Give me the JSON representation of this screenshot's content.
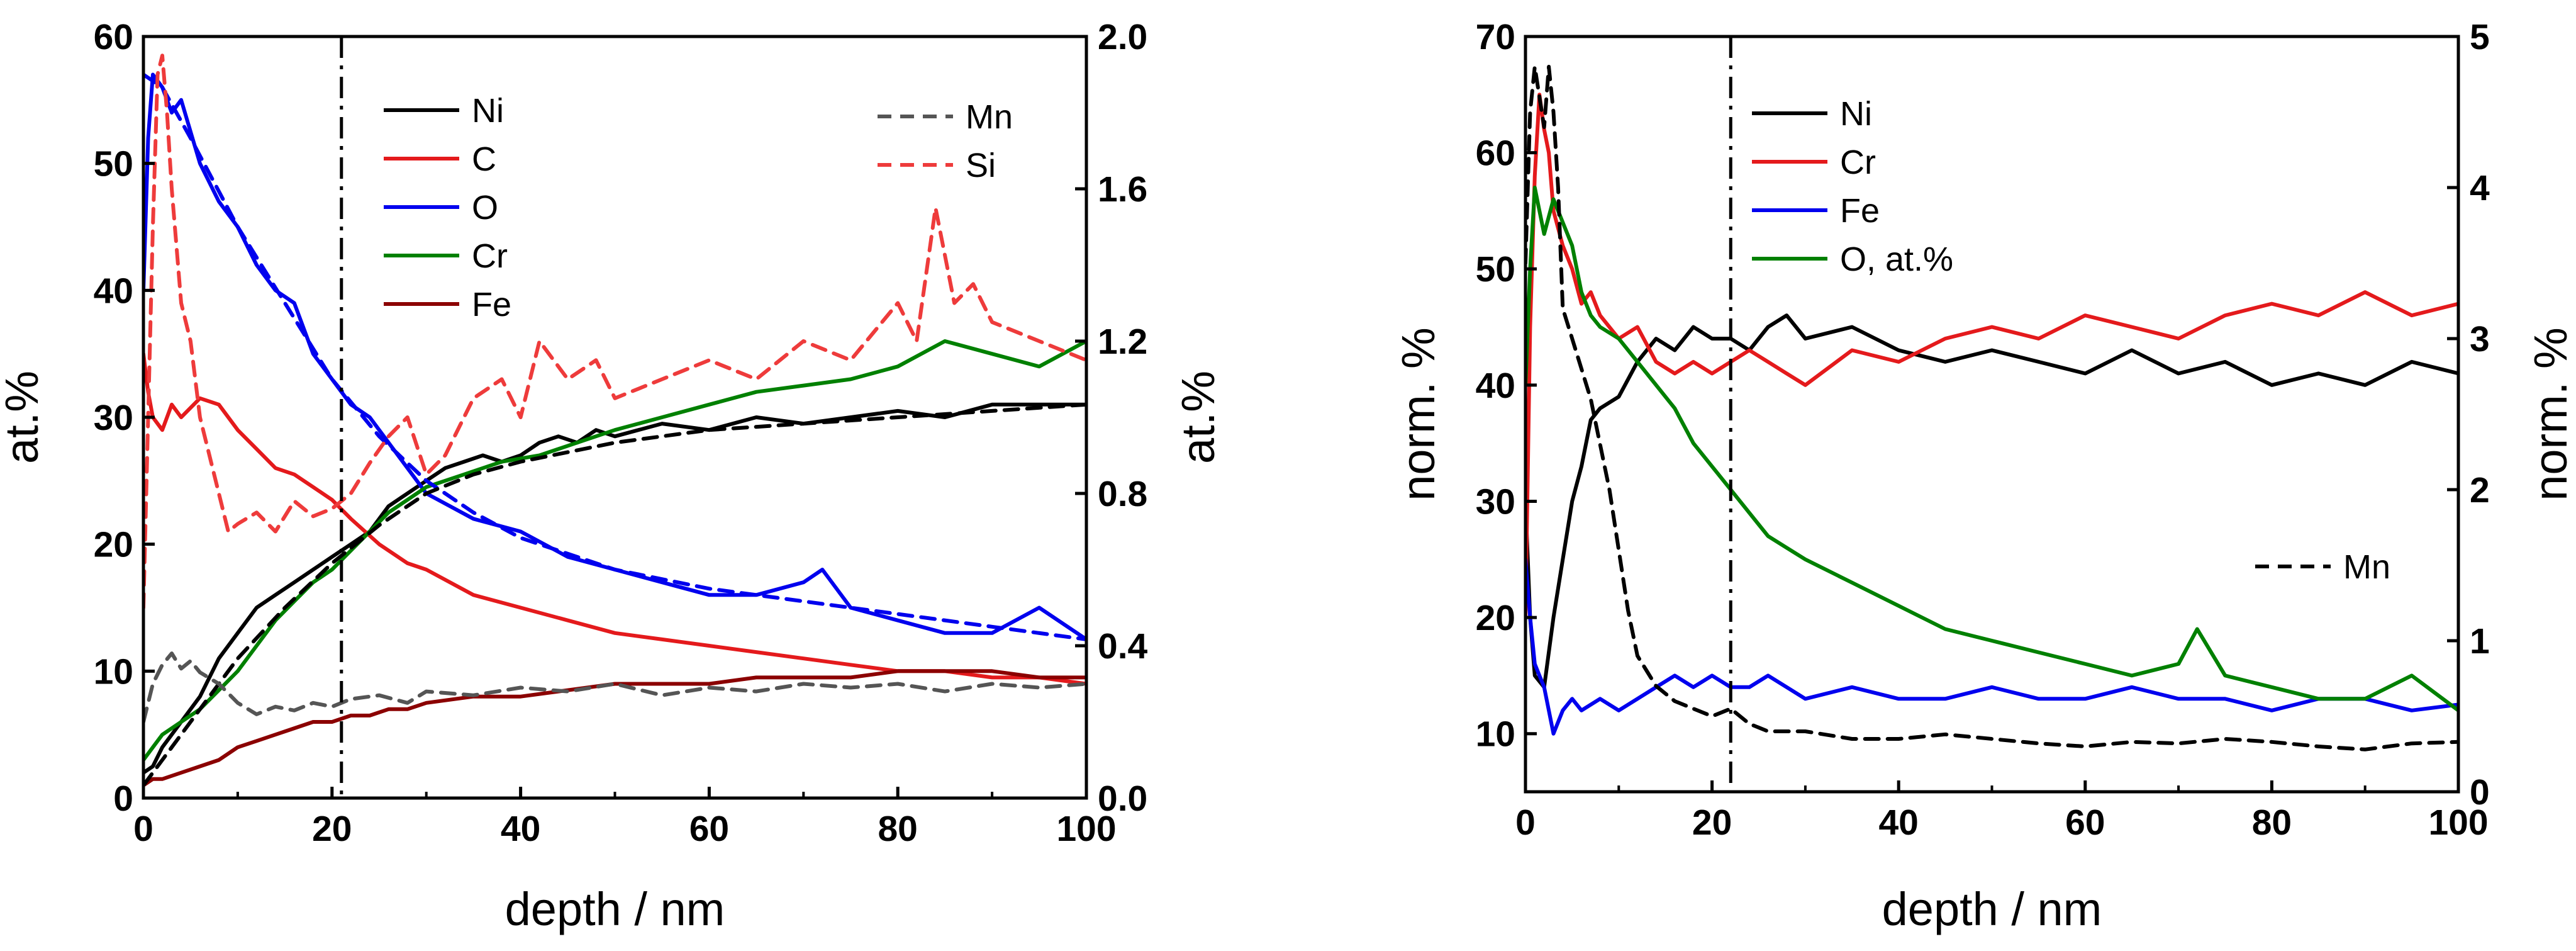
{
  "chart_data": [
    {
      "type": "line",
      "xlabel": "depth / nm",
      "ylabel": "at.%",
      "y2label": "at.%",
      "xlim": [
        0,
        100
      ],
      "ylim": [
        0,
        60
      ],
      "y2lim": [
        0,
        2.0
      ],
      "x_ticks": [
        "0",
        "20",
        "40",
        "60",
        "80",
        "100"
      ],
      "y_ticks": [
        "0",
        "10",
        "20",
        "30",
        "40",
        "50",
        "60"
      ],
      "y2_ticks": [
        "0.0",
        "0.4",
        "0.8",
        "1.2",
        "1.6",
        "2.0"
      ],
      "vline_x": 21,
      "series": [
        {
          "name": "Ni",
          "axis": "left",
          "color": "#000000",
          "dash": "solid",
          "x": [
            0,
            1,
            2,
            4,
            6,
            8,
            10,
            12,
            14,
            16,
            18,
            20,
            22,
            24,
            26,
            28,
            30,
            32,
            34,
            36,
            38,
            40,
            42,
            44,
            46,
            48,
            50,
            55,
            60,
            65,
            70,
            75,
            80,
            85,
            90,
            95,
            100
          ],
          "y": [
            2,
            2.5,
            4,
            6,
            8,
            11,
            13,
            15,
            16,
            17,
            18,
            19,
            20,
            21,
            23,
            24,
            25,
            26,
            26.5,
            27,
            26.5,
            27,
            28,
            28.5,
            28,
            29,
            28.5,
            29.5,
            29,
            30,
            29.5,
            30,
            30.5,
            30,
            31,
            31,
            31
          ]
        },
        {
          "name": "C",
          "axis": "left",
          "color": "#e41a1c",
          "dash": "solid",
          "x": [
            0,
            0.5,
            1,
            2,
            3,
            4,
            6,
            8,
            10,
            12,
            14,
            16,
            18,
            20,
            22,
            25,
            28,
            30,
            35,
            40,
            45,
            50,
            55,
            60,
            65,
            70,
            75,
            80,
            85,
            90,
            95,
            100
          ],
          "y": [
            35,
            32,
            30,
            29,
            31,
            30,
            31.5,
            31,
            29,
            27.5,
            26,
            25.5,
            24.5,
            23.5,
            22,
            20,
            18.5,
            18,
            16,
            15,
            14,
            13,
            12.5,
            12,
            11.5,
            11,
            10.5,
            10,
            10,
            9.5,
            9.5,
            9
          ]
        },
        {
          "name": "O",
          "axis": "left",
          "color": "#0000ee",
          "dash": "solid",
          "x": [
            0,
            0.5,
            1,
            2,
            3,
            4,
            6,
            8,
            10,
            12,
            14,
            16,
            18,
            20,
            22,
            24,
            26,
            28,
            30,
            35,
            40,
            45,
            50,
            55,
            60,
            65,
            70,
            72,
            75,
            80,
            85,
            90,
            95,
            100
          ],
          "y": [
            40,
            52,
            57,
            56,
            54,
            55,
            50,
            47,
            45,
            42,
            40,
            39,
            35,
            33,
            31,
            30,
            28,
            26,
            24,
            22,
            21,
            19,
            18,
            17,
            16,
            16,
            17,
            18,
            15,
            14,
            13,
            13,
            15,
            12.5
          ]
        },
        {
          "name": "Cr",
          "axis": "left",
          "color": "#008000",
          "dash": "solid",
          "x": [
            0,
            1,
            2,
            4,
            6,
            8,
            10,
            12,
            14,
            16,
            18,
            20,
            22,
            24,
            26,
            28,
            30,
            34,
            38,
            42,
            46,
            50,
            55,
            60,
            65,
            70,
            75,
            80,
            85,
            90,
            95,
            100
          ],
          "y": [
            3,
            4,
            5,
            6,
            7,
            8.5,
            10,
            12,
            14,
            15.5,
            17,
            18,
            19.5,
            21,
            22.5,
            23.5,
            24.5,
            25.5,
            26.5,
            27,
            28,
            29,
            30,
            31,
            32,
            32.5,
            33,
            34,
            36,
            35,
            34,
            36
          ]
        },
        {
          "name": "Fe",
          "axis": "left",
          "color": "#8b0000",
          "dash": "solid",
          "x": [
            0,
            1,
            2,
            4,
            6,
            8,
            10,
            12,
            14,
            16,
            18,
            20,
            22,
            24,
            26,
            28,
            30,
            35,
            40,
            45,
            50,
            55,
            60,
            65,
            70,
            75,
            80,
            85,
            90,
            95,
            100
          ],
          "y": [
            1,
            1.5,
            1.5,
            2,
            2.5,
            3,
            4,
            4.5,
            5,
            5.5,
            6,
            6,
            6.5,
            6.5,
            7,
            7,
            7.5,
            8,
            8,
            8.5,
            9,
            9,
            9,
            9.5,
            9.5,
            9.5,
            10,
            10,
            10,
            9.5,
            9.5
          ]
        },
        {
          "name": "O fit",
          "axis": "left",
          "color": "#0000ee",
          "dash": "dashed",
          "legend": false,
          "x": [
            0,
            2,
            5,
            10,
            15,
            20,
            25,
            30,
            35,
            40,
            50,
            60,
            70,
            80,
            90,
            100
          ],
          "y": [
            57,
            56,
            52,
            45,
            39,
            33,
            28.5,
            25,
            22.5,
            20.5,
            18,
            16.5,
            15.5,
            14.5,
            13.5,
            12.5
          ]
        },
        {
          "name": "Ni fit",
          "axis": "left",
          "color": "#000000",
          "dash": "dashed",
          "legend": false,
          "x": [
            0,
            2,
            5,
            10,
            15,
            20,
            25,
            30,
            35,
            40,
            50,
            60,
            70,
            80,
            90,
            100
          ],
          "y": [
            1,
            3,
            6,
            11,
            15,
            18.5,
            21.5,
            24,
            25.5,
            26.5,
            28,
            29,
            29.5,
            30,
            30.5,
            31
          ]
        },
        {
          "name": "Mn",
          "axis": "right",
          "color": "#555555",
          "dash": "dashed",
          "x": [
            0,
            1,
            2,
            3,
            4,
            5,
            6,
            8,
            10,
            12,
            14,
            16,
            18,
            20,
            22,
            25,
            28,
            30,
            35,
            40,
            45,
            50,
            55,
            60,
            65,
            70,
            75,
            80,
            85,
            90,
            95,
            100
          ],
          "y": [
            0.2,
            0.3,
            0.35,
            0.38,
            0.34,
            0.36,
            0.33,
            0.3,
            0.25,
            0.22,
            0.24,
            0.23,
            0.25,
            0.24,
            0.26,
            0.27,
            0.25,
            0.28,
            0.27,
            0.29,
            0.28,
            0.3,
            0.27,
            0.29,
            0.28,
            0.3,
            0.29,
            0.3,
            0.28,
            0.3,
            0.29,
            0.3
          ]
        },
        {
          "name": "Si",
          "axis": "right",
          "color": "#ee3b3b",
          "dash": "dashed",
          "x": [
            0,
            0.5,
            1,
            1.5,
            2,
            2.5,
            3,
            4,
            5,
            6,
            7,
            8,
            9,
            10,
            12,
            14,
            16,
            18,
            20,
            22,
            24,
            26,
            28,
            30,
            32,
            35,
            38,
            40,
            42,
            45,
            48,
            50,
            55,
            60,
            65,
            70,
            75,
            80,
            82,
            84,
            86,
            88,
            90,
            95,
            100
          ],
          "y": [
            0.5,
            1.0,
            1.5,
            1.9,
            1.95,
            1.8,
            1.6,
            1.3,
            1.2,
            1.0,
            0.9,
            0.8,
            0.7,
            0.72,
            0.75,
            0.7,
            0.78,
            0.74,
            0.76,
            0.8,
            0.88,
            0.95,
            1.0,
            0.85,
            0.9,
            1.05,
            1.1,
            1.0,
            1.2,
            1.1,
            1.15,
            1.05,
            1.1,
            1.15,
            1.1,
            1.2,
            1.15,
            1.3,
            1.2,
            1.55,
            1.3,
            1.35,
            1.25,
            1.2,
            1.15
          ]
        }
      ]
    },
    {
      "type": "line",
      "xlabel": "depth / nm",
      "ylabel": "norm. %",
      "y2label": "norm. %",
      "xlim": [
        0,
        100
      ],
      "ylim": [
        5,
        70
      ],
      "y2lim": [
        0,
        5
      ],
      "x_ticks": [
        "0",
        "20",
        "40",
        "60",
        "80",
        "100"
      ],
      "y_ticks": [
        "10",
        "20",
        "30",
        "40",
        "50",
        "60",
        "70"
      ],
      "y2_ticks": [
        "0",
        "1",
        "2",
        "3",
        "4",
        "5"
      ],
      "vline_x": 22,
      "series": [
        {
          "name": "Ni",
          "axis": "left",
          "color": "#000000",
          "dash": "solid",
          "x": [
            0,
            0.5,
            1,
            2,
            3,
            4,
            5,
            6,
            7,
            8,
            10,
            12,
            14,
            16,
            18,
            20,
            22,
            24,
            26,
            28,
            30,
            35,
            40,
            45,
            50,
            55,
            60,
            65,
            70,
            75,
            80,
            85,
            90,
            95,
            100
          ],
          "y": [
            30,
            20,
            15,
            14,
            20,
            25,
            30,
            33,
            37,
            38,
            39,
            42,
            44,
            43,
            45,
            44,
            44,
            43,
            45,
            46,
            44,
            45,
            43,
            42,
            43,
            42,
            41,
            43,
            41,
            42,
            40,
            41,
            40,
            42,
            41
          ]
        },
        {
          "name": "Cr",
          "axis": "left",
          "color": "#e41a1c",
          "dash": "solid",
          "x": [
            0,
            0.5,
            1,
            1.5,
            2,
            2.5,
            3,
            4,
            5,
            6,
            7,
            8,
            10,
            12,
            14,
            16,
            18,
            20,
            22,
            24,
            26,
            28,
            30,
            35,
            40,
            45,
            50,
            55,
            60,
            65,
            70,
            75,
            80,
            85,
            90,
            95,
            100
          ],
          "y": [
            20,
            45,
            58,
            65,
            62,
            60,
            55,
            52,
            50,
            47,
            48,
            46,
            44,
            45,
            42,
            41,
            42,
            41,
            42,
            43,
            42,
            41,
            40,
            43,
            42,
            44,
            45,
            44,
            46,
            45,
            44,
            46,
            47,
            46,
            48,
            46,
            47
          ]
        },
        {
          "name": "Fe",
          "axis": "left",
          "color": "#0000ee",
          "dash": "solid",
          "x": [
            0,
            0.5,
            1,
            1.5,
            2,
            3,
            4,
            5,
            6,
            8,
            10,
            12,
            14,
            16,
            18,
            20,
            22,
            24,
            26,
            28,
            30,
            35,
            40,
            45,
            50,
            55,
            60,
            65,
            70,
            75,
            80,
            85,
            90,
            95,
            100
          ],
          "y": [
            25,
            20,
            16,
            15,
            14,
            10,
            12,
            13,
            12,
            13,
            12,
            13,
            14,
            15,
            14,
            15,
            14,
            14,
            15,
            14,
            13,
            14,
            13,
            13,
            14,
            13,
            13,
            14,
            13,
            13,
            12,
            13,
            13,
            12,
            12.5
          ]
        },
        {
          "name": "O, at.%",
          "axis": "left",
          "color": "#008000",
          "dash": "solid",
          "x": [
            0,
            0.5,
            1,
            1.5,
            2,
            3,
            4,
            5,
            6,
            7,
            8,
            10,
            12,
            14,
            16,
            18,
            20,
            22,
            24,
            26,
            28,
            30,
            35,
            40,
            45,
            50,
            55,
            60,
            65,
            70,
            72,
            75,
            80,
            85,
            90,
            95,
            100
          ],
          "y": [
            40,
            50,
            57,
            55,
            53,
            56,
            54,
            52,
            48,
            46,
            45,
            44,
            42,
            40,
            38,
            35,
            33,
            31,
            29,
            27,
            26,
            25,
            23,
            21,
            19,
            18,
            17,
            16,
            15,
            16,
            19,
            15,
            14,
            13,
            13,
            15,
            12
          ]
        },
        {
          "name": "Mn",
          "axis": "right",
          "color": "#000000",
          "dash": "dashed",
          "x": [
            0,
            0.5,
            1,
            1.5,
            2,
            2.5,
            3,
            3.5,
            4,
            5,
            6,
            7,
            8,
            9,
            10,
            11,
            12,
            13,
            14,
            16,
            18,
            20,
            22,
            24,
            26,
            30,
            35,
            40,
            45,
            50,
            55,
            60,
            65,
            70,
            75,
            80,
            85,
            90,
            95,
            100
          ],
          "y": [
            3.5,
            4.5,
            4.8,
            4.6,
            4.4,
            4.8,
            4.5,
            4.0,
            3.2,
            3.0,
            2.8,
            2.6,
            2.3,
            2.0,
            1.6,
            1.2,
            0.9,
            0.8,
            0.7,
            0.6,
            0.55,
            0.5,
            0.55,
            0.45,
            0.4,
            0.4,
            0.35,
            0.35,
            0.38,
            0.35,
            0.32,
            0.3,
            0.33,
            0.32,
            0.35,
            0.33,
            0.3,
            0.28,
            0.32,
            0.33
          ]
        }
      ]
    }
  ]
}
